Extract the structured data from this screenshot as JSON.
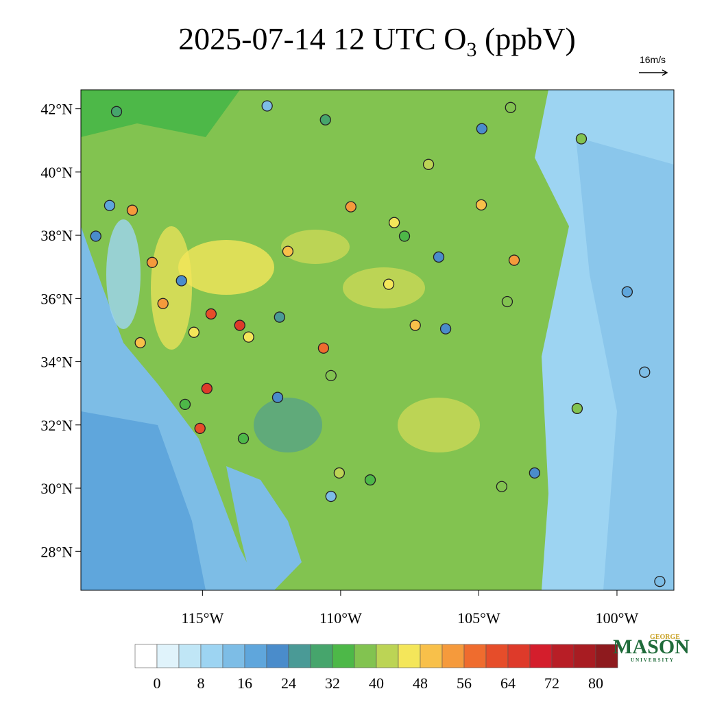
{
  "chart_data": {
    "type": "station-map",
    "title": {
      "text": "2025-07-14 12 UTC O",
      "subscript": "3",
      "suffix": " (ppbV)"
    },
    "wind_reference": "16m/s",
    "xlim": [
      -119.4,
      -97.94
    ],
    "ylim": [
      26.77,
      42.6
    ],
    "xticks": [
      {
        "value": -115,
        "label": "115°W"
      },
      {
        "value": -110,
        "label": "110°W"
      },
      {
        "value": -105,
        "label": "105°W"
      },
      {
        "value": -100,
        "label": "100°W"
      }
    ],
    "yticks": [
      {
        "value": 28,
        "label": "28°N"
      },
      {
        "value": 30,
        "label": "30°N"
      },
      {
        "value": 32,
        "label": "32°N"
      },
      {
        "value": 34,
        "label": "34°N"
      },
      {
        "value": 36,
        "label": "36°N"
      },
      {
        "value": 38,
        "label": "38°N"
      },
      {
        "value": 40,
        "label": "40°N"
      },
      {
        "value": 42,
        "label": "42°N"
      }
    ],
    "colorbar": {
      "levels": [
        0,
        4,
        8,
        12,
        16,
        20,
        24,
        28,
        32,
        36,
        40,
        44,
        48,
        52,
        56,
        60,
        64,
        68,
        72,
        76,
        80
      ],
      "ticks": [
        0,
        8,
        16,
        24,
        32,
        40,
        48,
        56,
        64,
        72,
        80
      ],
      "colors": [
        "#ffffff",
        "#e0f3fb",
        "#c0e6f6",
        "#9dd4f2",
        "#7dbde6",
        "#5fa6dc",
        "#4a8ccb",
        "#4a9a96",
        "#46a56c",
        "#4db848",
        "#82c350",
        "#bcd455",
        "#f4e65a",
        "#f8c04a",
        "#f59a3c",
        "#ef6c2e",
        "#e64d2a",
        "#de3a2a",
        "#d41e2c",
        "#b81e26",
        "#a81c22",
        "#8e1a1e"
      ]
    },
    "stations": {
      "lon": [
        -115.09,
        -114.84,
        -114.69,
        -113.65,
        -110.62,
        -109.63,
        -116.43,
        -116.82,
        -117.54,
        -117.25,
        -103.72,
        -104.91,
        -107.3,
        -108.06,
        -115.31,
        -113.33,
        -111.91,
        -106.82,
        -108.26,
        -118.36,
        -118.86,
        -112.66,
        -112.21,
        -115.76,
        -104.89,
        -102.98,
        -99.0,
        -98.45,
        -99.63,
        -110.35,
        -106.45,
        -106.2,
        -112.28,
        -101.44,
        -101.29,
        -110.55,
        -108.93,
        -113.52,
        -103.85,
        -110.35,
        -107.69,
        -103.97,
        -115.63,
        -104.17,
        -110.05,
        -118.11
      ],
      "lat": [
        31.89,
        33.15,
        35.51,
        35.15,
        34.43,
        38.9,
        35.84,
        37.14,
        38.79,
        34.6,
        37.21,
        38.96,
        35.15,
        38.4,
        34.93,
        34.78,
        37.49,
        40.24,
        36.45,
        38.94,
        37.97,
        42.09,
        35.41,
        36.56,
        41.37,
        30.48,
        33.67,
        27.05,
        36.21,
        29.74,
        37.31,
        35.04,
        32.87,
        32.52,
        41.05,
        41.65,
        30.26,
        31.57,
        42.04,
        33.56,
        37.97,
        35.9,
        32.65,
        30.05,
        30.48,
        41.91
      ],
      "values": [
        62,
        64,
        62,
        66,
        56,
        54,
        54,
        54,
        52,
        50,
        52,
        50,
        48,
        46,
        46,
        46,
        50,
        42,
        46,
        16,
        20,
        12,
        24,
        22,
        22,
        22,
        14,
        14,
        18,
        14,
        22,
        20,
        22,
        36,
        36,
        30,
        32,
        32,
        38,
        38,
        34,
        38,
        34,
        38,
        40,
        30
      ]
    },
    "logo": {
      "top": "GEORGE",
      "main": "MASON",
      "bottom": "UNIVERSITY"
    }
  }
}
